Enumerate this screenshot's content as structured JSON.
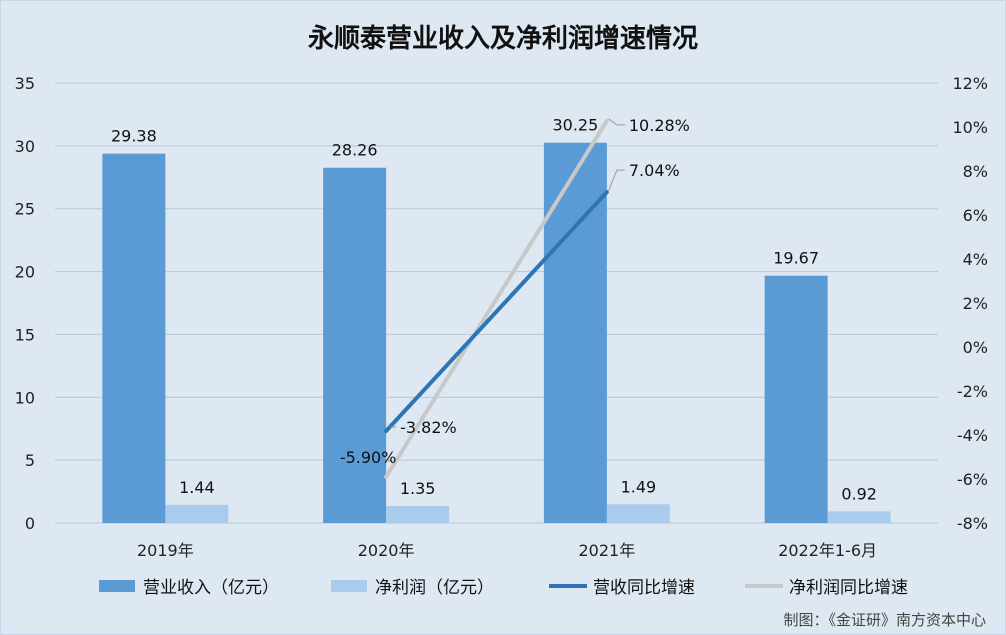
{
  "chart_data": {
    "type": "bar",
    "title": "永顺泰营业收入及净利润增速情况",
    "categories": [
      "2019年",
      "2020年",
      "2021年",
      "2022年1-6月"
    ],
    "series": [
      {
        "name": "营业收入（亿元）",
        "kind": "bar",
        "axis": "left",
        "color": "#5b9bd5",
        "values": [
          29.38,
          28.26,
          30.25,
          19.67
        ],
        "labels": [
          "29.38",
          "28.26",
          "30.25",
          "19.67"
        ]
      },
      {
        "name": "净利润（亿元）",
        "kind": "bar",
        "axis": "left",
        "color": "#a9cbec",
        "values": [
          1.44,
          1.35,
          1.49,
          0.92
        ],
        "labels": [
          "1.44",
          "1.35",
          "1.49",
          "0.92"
        ]
      },
      {
        "name": "营收同比增速",
        "kind": "line",
        "axis": "right",
        "color": "#2e75b6",
        "points": [
          {
            "category": "2020年",
            "value": -3.82,
            "label": "-3.82%"
          },
          {
            "category": "2021年",
            "value": 7.04,
            "label": "7.04%"
          }
        ]
      },
      {
        "name": "净利润同比增速",
        "kind": "line",
        "axis": "right",
        "color": "#c8c8c8",
        "points": [
          {
            "category": "2020年",
            "value": -5.9,
            "label": "-5.90%"
          },
          {
            "category": "2021年",
            "value": 10.28,
            "label": "10.28%"
          }
        ]
      }
    ],
    "y_left": {
      "ylim": [
        0,
        35
      ],
      "ticks": [
        "0",
        "5",
        "10",
        "15",
        "20",
        "25",
        "30",
        "35"
      ]
    },
    "y_right": {
      "ylim": [
        -8,
        12
      ],
      "ticks": [
        "-8%",
        "-6%",
        "-4%",
        "-2%",
        "0%",
        "2%",
        "4%",
        "6%",
        "8%",
        "10%",
        "12%"
      ]
    },
    "grid": true,
    "legend_position": "bottom",
    "credit": "制图：《金证研》南方资本中心"
  }
}
